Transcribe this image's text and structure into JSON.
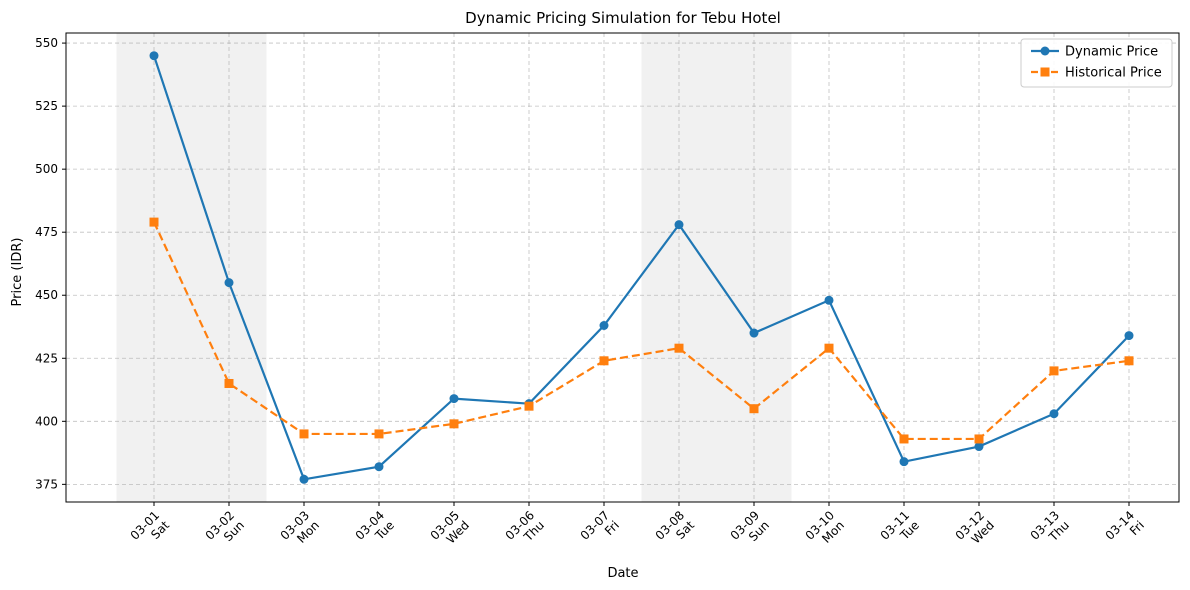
{
  "chart_data": {
    "type": "line",
    "title": "Dynamic Pricing Simulation for Tebu Hotel",
    "xlabel": "Date",
    "ylabel": "Price (IDR)",
    "categories": [
      "03-01",
      "03-02",
      "03-03",
      "03-04",
      "03-05",
      "03-06",
      "03-07",
      "03-08",
      "03-09",
      "03-10",
      "03-11",
      "03-12",
      "03-13",
      "03-14"
    ],
    "weekdays": [
      "Sat",
      "Sun",
      "Mon",
      "Tue",
      "Wed",
      "Thu",
      "Fri",
      "Sat",
      "Sun",
      "Mon",
      "Tue",
      "Wed",
      "Thu",
      "Fri"
    ],
    "weekend_shaded": [
      true,
      true,
      false,
      false,
      false,
      false,
      false,
      true,
      true,
      false,
      false,
      false,
      false,
      false
    ],
    "ylim": [
      368,
      554
    ],
    "yticks": [
      375,
      400,
      425,
      450,
      475,
      500,
      525,
      550
    ],
    "grid": true,
    "legend_position": "top-right",
    "series": [
      {
        "name": "Dynamic Price",
        "color": "#1f77b4",
        "line_style": "solid",
        "marker": "circle",
        "values": [
          545,
          455,
          377,
          382,
          409,
          407,
          438,
          478,
          435,
          448,
          384,
          390,
          403,
          434
        ]
      },
      {
        "name": "Historical Price",
        "color": "#ff7f0e",
        "line_style": "dashed",
        "marker": "square",
        "values": [
          479,
          415,
          395,
          395,
          399,
          406,
          424,
          429,
          405,
          429,
          393,
          393,
          420,
          424
        ]
      }
    ]
  }
}
